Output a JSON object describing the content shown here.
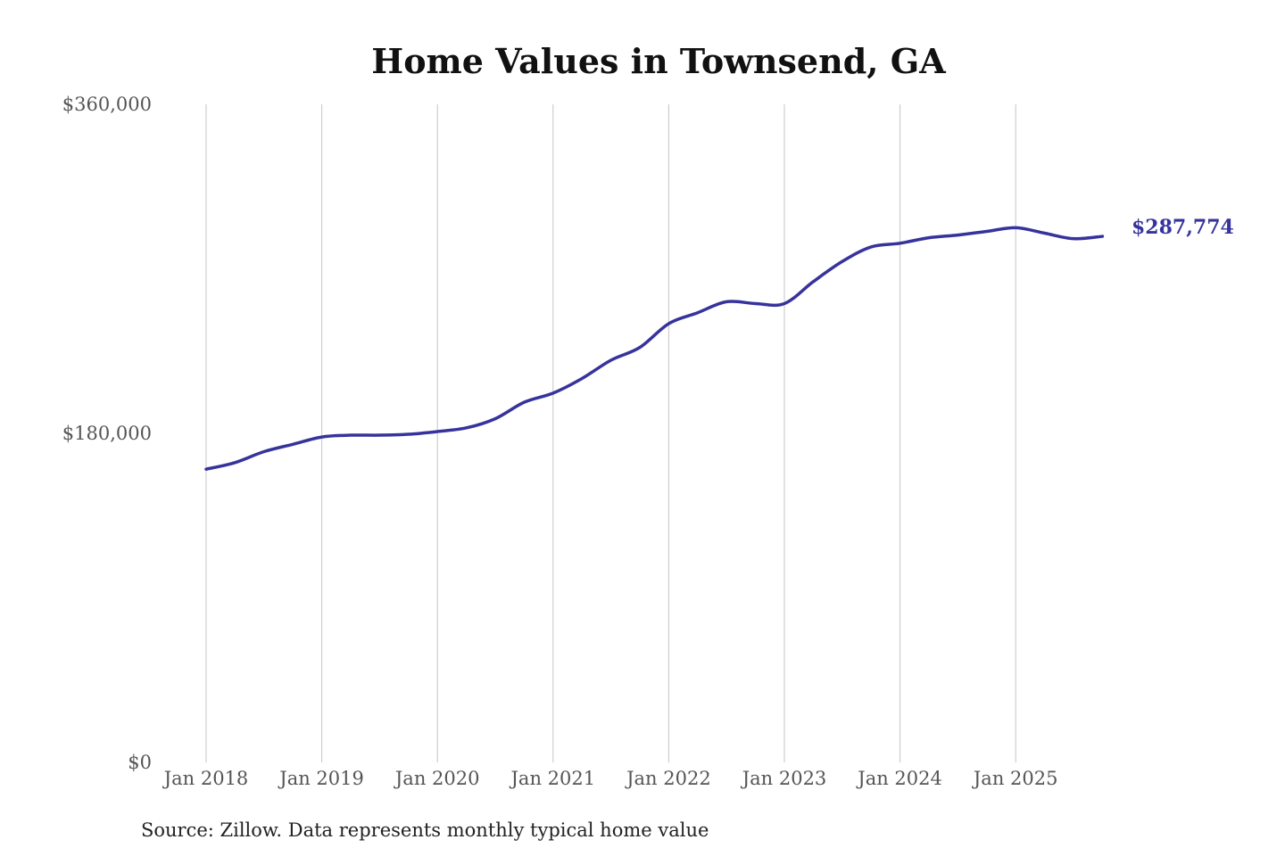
{
  "chart_data": {
    "type": "line",
    "title": "Home Values in Townsend, GA",
    "xlabel": "",
    "ylabel": "",
    "source": "Source: Zillow. Data represents monthly typical home value",
    "ylim": [
      0,
      360000
    ],
    "y_ticks": [
      0,
      180000,
      360000
    ],
    "y_tick_labels": [
      "$0",
      "$180,000",
      "$360,000"
    ],
    "x_ticks": [
      "2018-01",
      "2019-01",
      "2020-01",
      "2021-01",
      "2022-01",
      "2023-01",
      "2024-01",
      "2025-01"
    ],
    "x_tick_labels": [
      "Jan 2018",
      "Jan 2019",
      "Jan 2020",
      "Jan 2021",
      "Jan 2022",
      "Jan 2023",
      "Jan 2024",
      "Jan 2025"
    ],
    "grid": "vertical",
    "line_color": "#37339c",
    "end_label": "$287,774",
    "series": [
      {
        "x": [
          "2018-01",
          "2018-04",
          "2018-07",
          "2018-10",
          "2019-01",
          "2019-04",
          "2019-07",
          "2019-10",
          "2020-01",
          "2020-04",
          "2020-07",
          "2020-10",
          "2021-01",
          "2021-04",
          "2021-07",
          "2021-10",
          "2022-01",
          "2022-04",
          "2022-07",
          "2022-10",
          "2023-01",
          "2023-04",
          "2023-07",
          "2023-10",
          "2024-01",
          "2024-04",
          "2024-07",
          "2024-10",
          "2025-01",
          "2025-04",
          "2025-07",
          "2025-10"
        ],
        "values": [
          160400,
          164000,
          170000,
          174000,
          178000,
          179000,
          179000,
          179500,
          181000,
          183000,
          188000,
          197000,
          202000,
          210000,
          220000,
          227000,
          240000,
          246000,
          252000,
          251000,
          251000,
          263000,
          274000,
          282000,
          284000,
          287000,
          288500,
          290500,
          292500,
          289500,
          286500,
          287774
        ]
      }
    ]
  }
}
